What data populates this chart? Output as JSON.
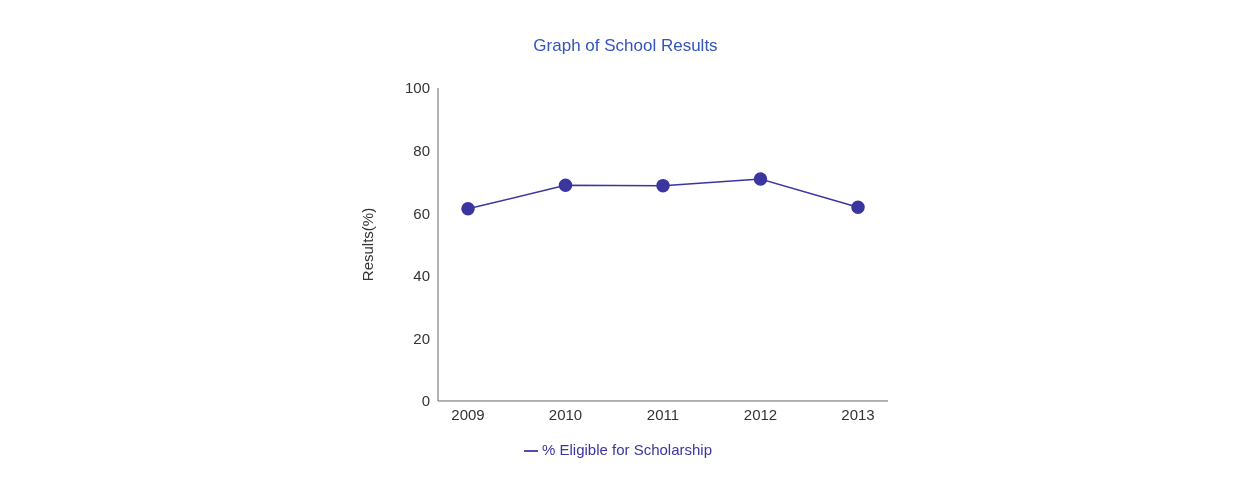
{
  "chart_data": {
    "type": "line",
    "title": "Graph of School Results",
    "ylabel": "Results(%)",
    "categories": [
      "2009",
      "2010",
      "2011",
      "2012",
      "2013"
    ],
    "series": [
      {
        "name": "% Eligible for Scholarship",
        "color": "#3b35a0",
        "values": [
          61.4,
          68.9,
          68.8,
          70.9,
          61.9
        ]
      }
    ],
    "ylim": [
      0,
      100
    ],
    "yticks": [
      0,
      20,
      40,
      60,
      80,
      100
    ],
    "grid": false,
    "legend": "bottom",
    "marker": "circle",
    "line_style": "solid"
  }
}
